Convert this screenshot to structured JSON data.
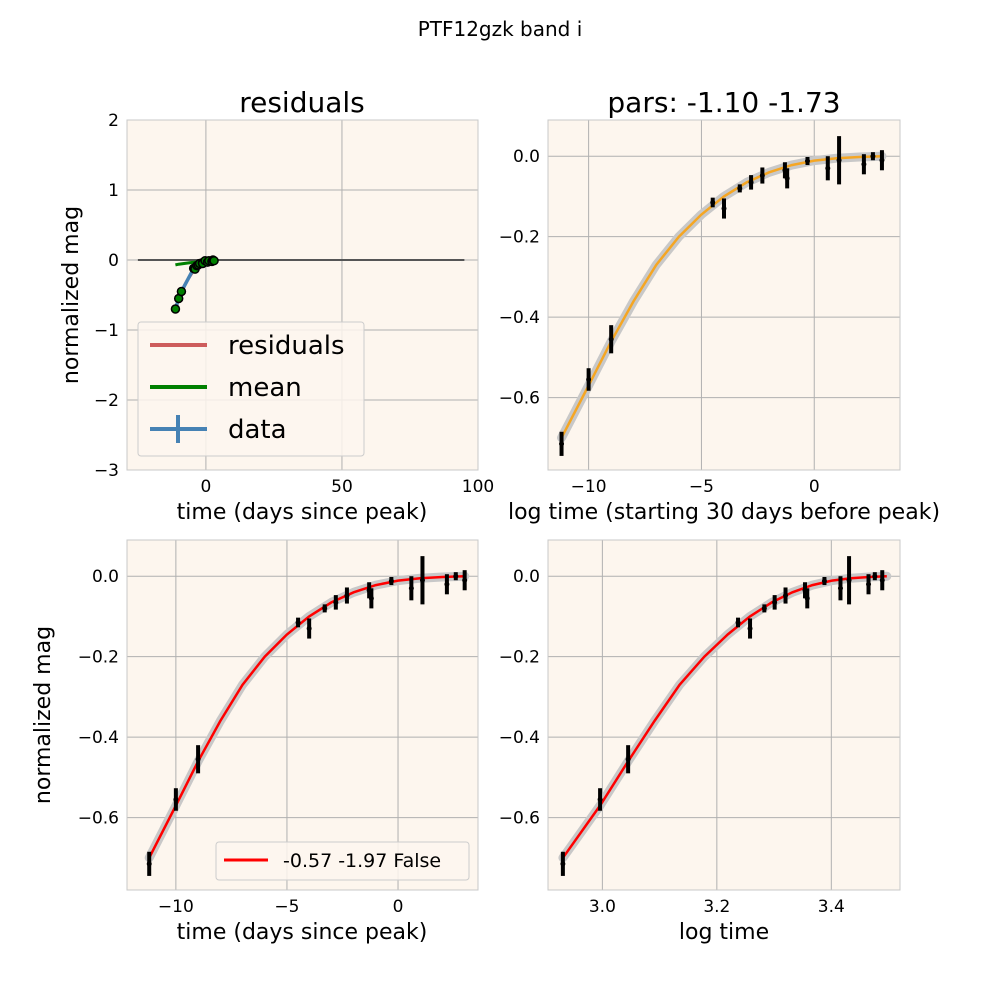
{
  "figure": {
    "suptitle": "PTF12gzk band i"
  },
  "colors": {
    "panel_bg": "#fdf6ee",
    "grid": "#b0b0b0",
    "residuals": "#cd5c5c",
    "mean": "#008000",
    "data": "#4682b4",
    "fit_orange": "#f5a623",
    "fit_red": "#ff0000",
    "band": "#c8c8c8",
    "zero_line": "#555555"
  },
  "chart_data": [
    {
      "id": "residuals",
      "type": "line",
      "title": "residuals",
      "xlabel": "time (days since peak)",
      "ylabel": "normalized mag",
      "xlim": [
        -29,
        100
      ],
      "ylim": [
        -3,
        2
      ],
      "xticks": [
        0,
        50,
        100
      ],
      "yticks": [
        -3,
        -2,
        -1,
        0,
        1,
        2
      ],
      "grid": true,
      "legend": {
        "placement": "lower-left",
        "entries": [
          {
            "label": "residuals",
            "color": "#cd5c5c",
            "kind": "line"
          },
          {
            "label": "mean",
            "color": "#008000",
            "kind": "line"
          },
          {
            "label": "data",
            "color": "#4682b4",
            "kind": "errorbar"
          }
        ]
      },
      "series": [
        {
          "name": "residuals",
          "x": [
            -11.2,
            -10,
            -9,
            -7,
            -5,
            -3,
            -1.5,
            0,
            1,
            2,
            3
          ],
          "y": [
            -0.7,
            -0.56,
            -0.45,
            -0.3,
            -0.18,
            -0.09,
            -0.04,
            -0.01,
            0,
            0,
            0
          ]
        },
        {
          "name": "mean",
          "x": [
            -11.2,
            -10,
            -8,
            -6,
            -4,
            -2,
            0,
            1,
            2,
            3
          ],
          "y": [
            -0.07,
            -0.06,
            -0.05,
            -0.04,
            -0.03,
            -0.02,
            -0.01,
            0,
            0,
            0
          ]
        },
        {
          "name": "data",
          "x": [
            -11.2,
            -10,
            -9,
            -4.5,
            -4,
            -3.3,
            -2.8,
            -2.3,
            -1.3,
            -1.2,
            -0.3,
            0.6,
            1.1,
            2.2,
            2.6,
            3.0
          ],
          "y": [
            -0.7,
            -0.55,
            -0.45,
            -0.12,
            -0.13,
            -0.08,
            -0.07,
            -0.05,
            -0.04,
            -0.05,
            -0.01,
            -0.03,
            -0.01,
            -0.02,
            0.0,
            -0.01
          ]
        },
        {
          "name": "zero",
          "x": [
            -25,
            95
          ],
          "y": [
            0,
            0
          ]
        }
      ]
    },
    {
      "id": "pars",
      "type": "line",
      "title": "pars: -1.10 -1.73",
      "xlabel": "log time (starting 30 days before peak)",
      "ylabel": "",
      "xlim": [
        -11.8,
        3.8
      ],
      "ylim": [
        -0.78,
        0.09
      ],
      "xticks": [
        -10,
        -5,
        0
      ],
      "yticks": [
        -0.6,
        -0.4,
        -0.2,
        0.0
      ],
      "grid": true,
      "series": [
        {
          "name": "data",
          "x": [
            -11.2,
            -10,
            -9,
            -4.5,
            -4,
            -3.3,
            -2.8,
            -2.3,
            -1.3,
            -1.2,
            -0.3,
            0.6,
            1.1,
            2.2,
            2.6,
            3.0
          ],
          "y": [
            -0.715,
            -0.555,
            -0.455,
            -0.115,
            -0.13,
            -0.08,
            -0.065,
            -0.048,
            -0.035,
            -0.055,
            -0.012,
            -0.03,
            -0.01,
            -0.02,
            0.0,
            -0.01
          ],
          "err": [
            0.03,
            0.028,
            0.035,
            0.012,
            0.025,
            0.01,
            0.018,
            0.02,
            0.02,
            0.025,
            0.01,
            0.03,
            0.06,
            0.025,
            0.01,
            0.025
          ]
        },
        {
          "name": "fit",
          "x": [
            -11.2,
            -10,
            -9,
            -8,
            -7,
            -6,
            -5,
            -4,
            -3,
            -2,
            -1,
            0,
            1,
            2,
            3
          ],
          "y": [
            -0.7,
            -0.57,
            -0.46,
            -0.36,
            -0.27,
            -0.2,
            -0.145,
            -0.1,
            -0.065,
            -0.04,
            -0.022,
            -0.011,
            -0.005,
            -0.002,
            0.0
          ]
        }
      ]
    },
    {
      "id": "time",
      "type": "line",
      "title": "",
      "xlabel": "time (days since peak)",
      "ylabel": "normalized mag",
      "xlim": [
        -12.2,
        3.6
      ],
      "ylim": [
        -0.78,
        0.09
      ],
      "xticks": [
        -10,
        -5,
        0
      ],
      "yticks": [
        -0.6,
        -0.4,
        -0.2,
        0.0
      ],
      "grid": true,
      "legend": {
        "placement": "lower-right",
        "entries": [
          {
            "label": "-0.57 -1.97 False",
            "color": "#ff0000",
            "kind": "line"
          }
        ]
      },
      "series": [
        {
          "name": "data",
          "x": [
            -11.2,
            -10,
            -9,
            -4.5,
            -4,
            -3.3,
            -2.8,
            -2.3,
            -1.3,
            -1.2,
            -0.3,
            0.6,
            1.1,
            2.2,
            2.6,
            3.0
          ],
          "y": [
            -0.715,
            -0.555,
            -0.455,
            -0.115,
            -0.13,
            -0.08,
            -0.065,
            -0.048,
            -0.035,
            -0.055,
            -0.012,
            -0.03,
            -0.01,
            -0.02,
            0.0,
            -0.01
          ],
          "err": [
            0.03,
            0.028,
            0.035,
            0.012,
            0.025,
            0.01,
            0.018,
            0.02,
            0.02,
            0.025,
            0.01,
            0.03,
            0.06,
            0.025,
            0.01,
            0.025
          ]
        },
        {
          "name": "fit",
          "x": [
            -11.2,
            -10,
            -9,
            -8,
            -7,
            -6,
            -5,
            -4,
            -3,
            -2,
            -1,
            0,
            1,
            2,
            3
          ],
          "y": [
            -0.7,
            -0.57,
            -0.46,
            -0.36,
            -0.27,
            -0.2,
            -0.145,
            -0.1,
            -0.065,
            -0.04,
            -0.022,
            -0.011,
            -0.005,
            -0.002,
            0.0
          ]
        }
      ]
    },
    {
      "id": "logtime",
      "type": "line",
      "title": "",
      "xlabel": "log time",
      "ylabel": "",
      "xlim": [
        2.905,
        3.52
      ],
      "ylim": [
        -0.78,
        0.09
      ],
      "xticks": [
        3.0,
        3.2,
        3.4
      ],
      "yticks": [
        -0.6,
        -0.4,
        -0.2,
        0.0
      ],
      "grid": true,
      "series": [
        {
          "name": "data",
          "x": [
            2.931,
            2.996,
            3.045,
            3.237,
            3.258,
            3.283,
            3.301,
            3.32,
            3.354,
            3.358,
            3.388,
            3.416,
            3.431,
            3.465,
            3.476,
            3.489
          ],
          "y": [
            -0.715,
            -0.555,
            -0.455,
            -0.115,
            -0.13,
            -0.08,
            -0.065,
            -0.048,
            -0.035,
            -0.055,
            -0.012,
            -0.03,
            -0.01,
            -0.02,
            0.0,
            -0.01
          ],
          "err": [
            0.03,
            0.028,
            0.035,
            0.012,
            0.025,
            0.01,
            0.018,
            0.02,
            0.02,
            0.025,
            0.01,
            0.03,
            0.06,
            0.025,
            0.01,
            0.025
          ]
        },
        {
          "name": "fit",
          "x": [
            2.931,
            2.996,
            3.045,
            3.091,
            3.135,
            3.178,
            3.219,
            3.258,
            3.296,
            3.332,
            3.367,
            3.401,
            3.434,
            3.466,
            3.497
          ],
          "y": [
            -0.7,
            -0.57,
            -0.46,
            -0.36,
            -0.27,
            -0.2,
            -0.145,
            -0.1,
            -0.065,
            -0.04,
            -0.022,
            -0.011,
            -0.005,
            -0.002,
            0.0
          ]
        }
      ]
    }
  ]
}
